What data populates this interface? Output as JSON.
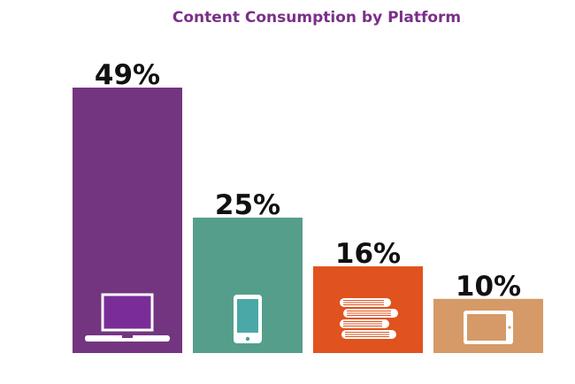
{
  "chart_data": {
    "type": "bar",
    "title": "Content Consumption by Platform",
    "xlabel": "",
    "ylabel": "",
    "ylim": [
      0,
      49
    ],
    "grid": false,
    "legend": "none",
    "bars": [
      {
        "value": 49,
        "label": "49%",
        "color": "#733580",
        "icon": "laptop-icon"
      },
      {
        "value": 25,
        "label": "25%",
        "color": "#559e8c",
        "icon": "smartphone-icon"
      },
      {
        "value": 16,
        "label": "16%",
        "color": "#e0521e",
        "icon": "books-icon"
      },
      {
        "value": 10,
        "label": "10%",
        "color": "#d59a67",
        "icon": "tablet-icon"
      }
    ]
  }
}
